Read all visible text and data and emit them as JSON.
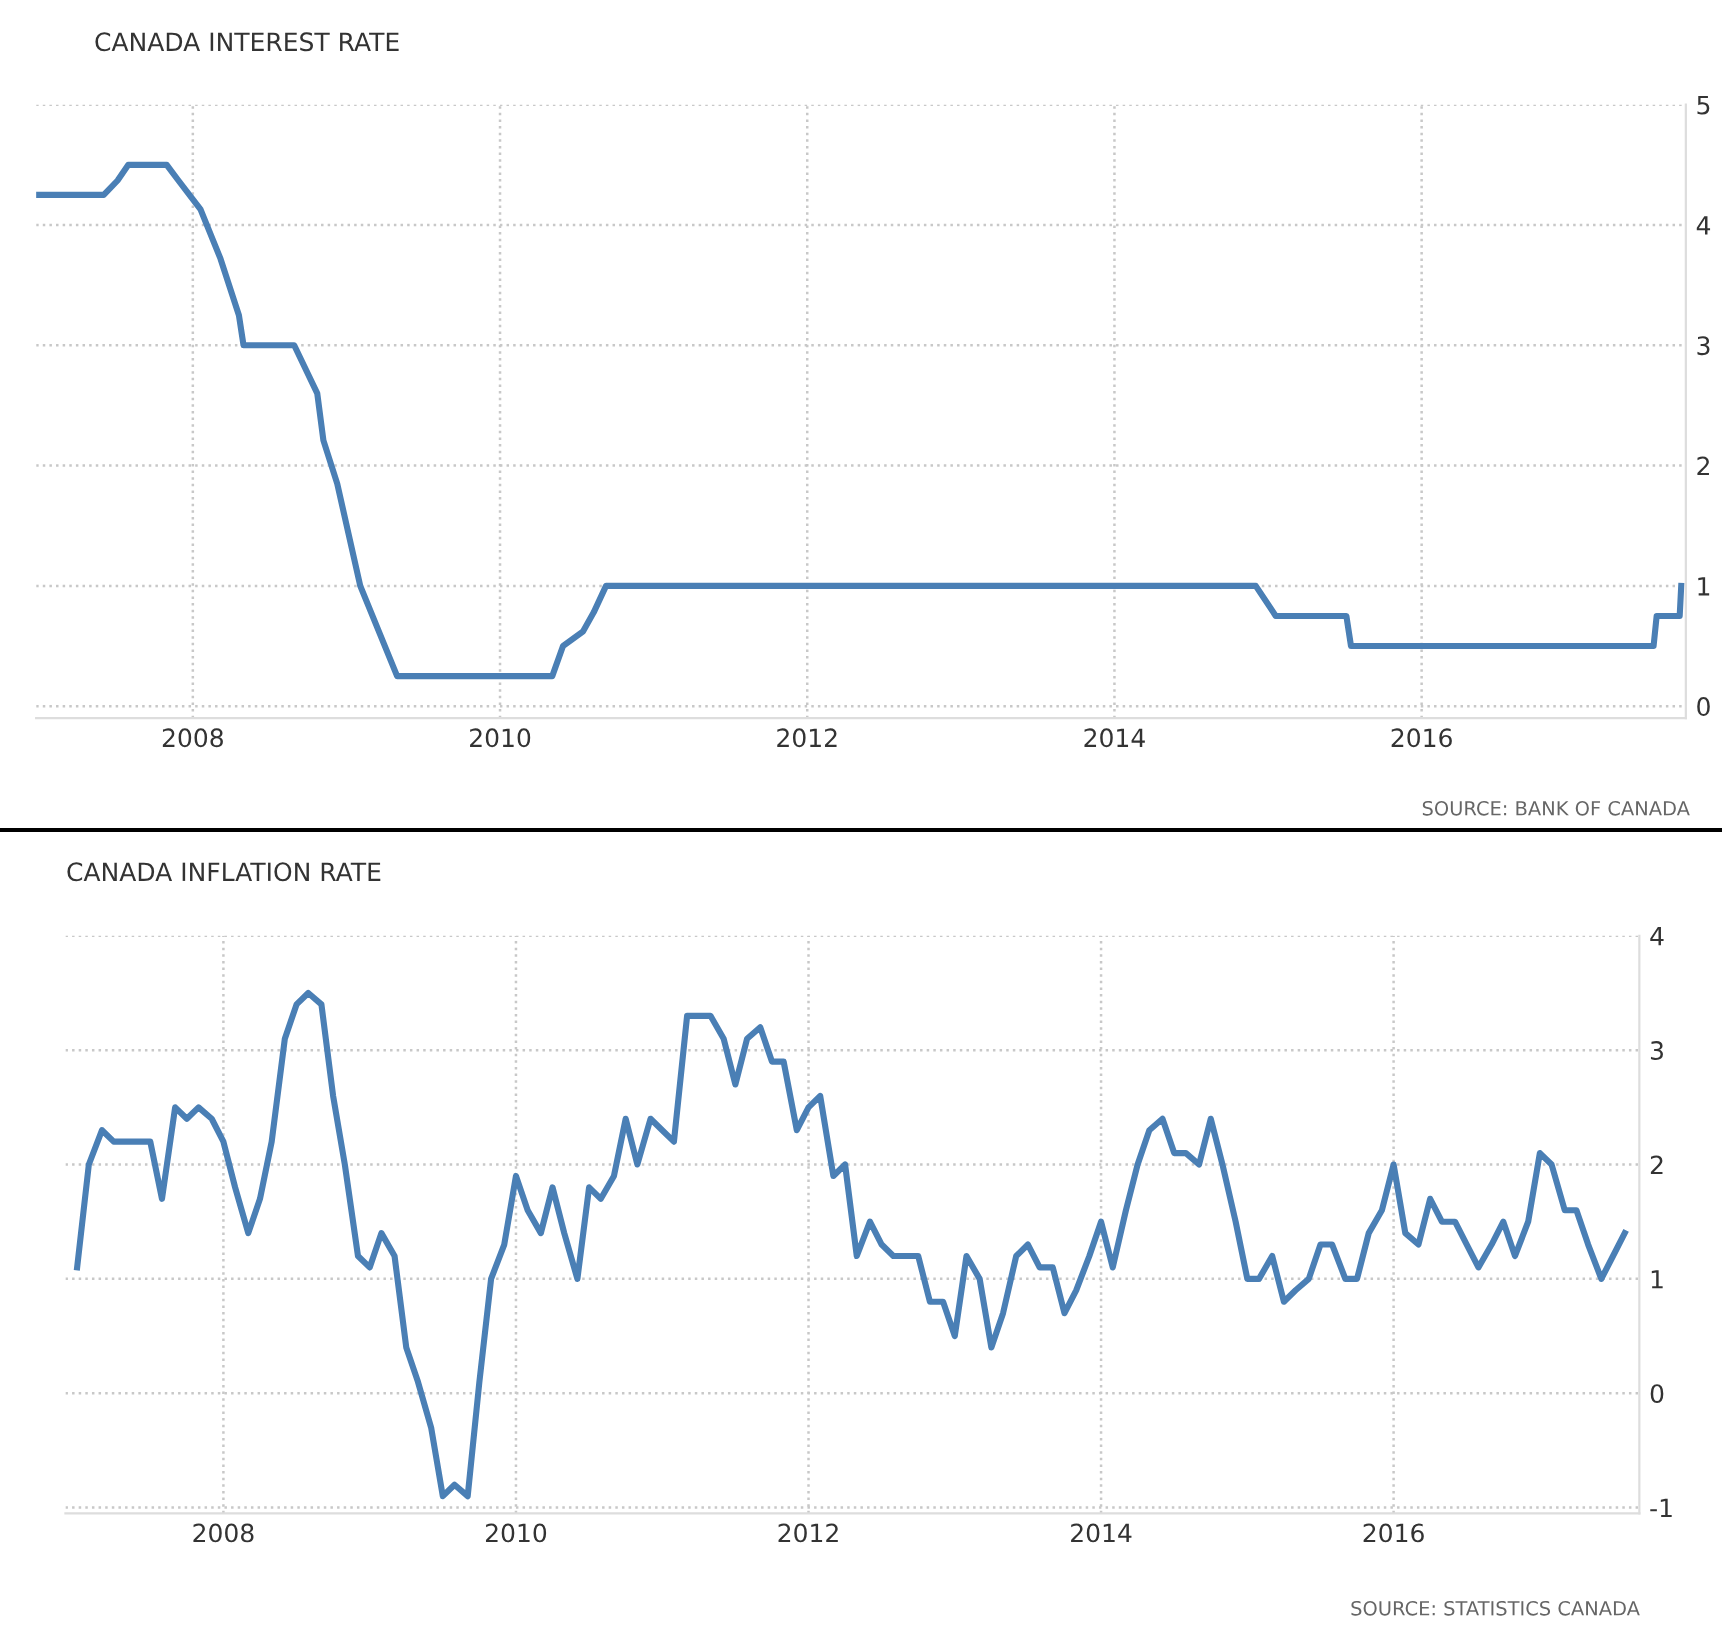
{
  "chart_data": [
    {
      "type": "line",
      "title": "CANADA INTEREST RATE",
      "annotations": [
        "SOURCE: BANK OF CANADA"
      ],
      "x": [
        2006.99,
        2007.42,
        2007.51,
        2007.58,
        2007.83,
        2007.9,
        2008.05,
        2008.18,
        2008.3,
        2008.33,
        2008.66,
        2008.81,
        2008.85,
        2008.94,
        2009.09,
        2009.33,
        2010.34,
        2010.41,
        2010.54,
        2010.61,
        2010.69,
        2014.92,
        2015.05,
        2015.51,
        2015.54,
        2017.51,
        2017.53,
        2017.68,
        2017.69
      ],
      "series": [
        {
          "color": "#4a7fb5",
          "values": [
            4.25,
            4.25,
            4.37,
            4.5,
            4.5,
            4.38,
            4.13,
            3.72,
            3.25,
            3,
            3,
            2.6,
            2.21,
            1.85,
            1,
            0.25,
            0.25,
            0.5,
            0.62,
            0.78,
            1,
            1,
            0.75,
            0.75,
            0.5,
            0.5,
            0.75,
            0.75,
            1
          ]
        }
      ],
      "xlim": [
        2006.98,
        2017.72
      ],
      "xticks": [
        2008,
        2010,
        2012,
        2014,
        2016
      ],
      "ylim": [
        -0.1,
        5
      ],
      "yticks": [
        0,
        1,
        2,
        3,
        4,
        5
      ],
      "grid": true,
      "line_style": "solid",
      "marker": "none"
    },
    {
      "type": "line",
      "title": "CANADA INFLATION RATE",
      "annotations": [
        "SOURCE: STATISTICS CANADA"
      ],
      "x": [
        2007.0,
        2007.08,
        2007.17,
        2007.25,
        2007.33,
        2007.42,
        2007.5,
        2007.58,
        2007.67,
        2007.75,
        2007.83,
        2007.92,
        2008.0,
        2008.08,
        2008.17,
        2008.25,
        2008.33,
        2008.42,
        2008.5,
        2008.58,
        2008.67,
        2008.75,
        2008.83,
        2008.92,
        2009.0,
        2009.08,
        2009.17,
        2009.25,
        2009.33,
        2009.42,
        2009.5,
        2009.58,
        2009.67,
        2009.75,
        2009.83,
        2009.92,
        2010.0,
        2010.08,
        2010.17,
        2010.25,
        2010.33,
        2010.42,
        2010.5,
        2010.58,
        2010.67,
        2010.75,
        2010.83,
        2010.92,
        2011.0,
        2011.08,
        2011.17,
        2011.25,
        2011.33,
        2011.42,
        2011.5,
        2011.58,
        2011.67,
        2011.75,
        2011.83,
        2011.92,
        2012.0,
        2012.08,
        2012.17,
        2012.25,
        2012.33,
        2012.42,
        2012.5,
        2012.58,
        2012.67,
        2012.75,
        2012.83,
        2012.92,
        2013.0,
        2013.08,
        2013.17,
        2013.25,
        2013.33,
        2013.42,
        2013.5,
        2013.58,
        2013.67,
        2013.75,
        2013.83,
        2013.92,
        2014.0,
        2014.08,
        2014.17,
        2014.25,
        2014.33,
        2014.42,
        2014.5,
        2014.58,
        2014.67,
        2014.75,
        2014.83,
        2014.92,
        2015.0,
        2015.08,
        2015.17,
        2015.25,
        2015.33,
        2015.42,
        2015.5,
        2015.58,
        2015.67,
        2015.75,
        2015.83,
        2015.92,
        2016.0,
        2016.08,
        2016.17,
        2016.25,
        2016.33,
        2016.42,
        2016.5,
        2016.58,
        2016.67,
        2016.75,
        2016.83,
        2016.92,
        2017.0,
        2017.08,
        2017.17,
        2017.25,
        2017.33,
        2017.42,
        2017.5,
        2017.58
      ],
      "series": [
        {
          "color": "#4a7fb5",
          "values": [
            1.1,
            2.0,
            2.3,
            2.2,
            2.2,
            2.2,
            2.2,
            1.7,
            2.5,
            2.4,
            2.5,
            2.4,
            2.2,
            1.8,
            1.4,
            1.7,
            2.2,
            3.1,
            3.4,
            3.5,
            3.4,
            2.6,
            2.0,
            1.2,
            1.1,
            1.4,
            1.2,
            0.4,
            0.1,
            -0.3,
            -0.9,
            -0.8,
            -0.9,
            0.1,
            1.0,
            1.3,
            1.9,
            1.6,
            1.4,
            1.8,
            1.4,
            1.0,
            1.8,
            1.7,
            1.9,
            2.4,
            2.0,
            2.4,
            2.3,
            2.2,
            3.3,
            3.3,
            3.3,
            3.1,
            2.7,
            3.1,
            3.2,
            2.9,
            2.9,
            2.3,
            2.5,
            2.6,
            1.9,
            2.0,
            1.2,
            1.5,
            1.3,
            1.2,
            1.2,
            1.2,
            0.8,
            0.8,
            0.5,
            1.2,
            1.0,
            0.4,
            0.7,
            1.2,
            1.3,
            1.1,
            1.1,
            0.7,
            0.9,
            1.2,
            1.5,
            1.1,
            1.6,
            2.0,
            2.3,
            2.4,
            2.1,
            2.1,
            2.0,
            2.4,
            2.0,
            1.5,
            1.0,
            1.0,
            1.2,
            0.8,
            0.9,
            1.0,
            1.3,
            1.3,
            1.0,
            1.0,
            1.4,
            1.6,
            2.0,
            1.4,
            1.3,
            1.7,
            1.5,
            1.5,
            1.3,
            1.1,
            1.3,
            1.5,
            1.2,
            1.5,
            2.1,
            2.0,
            1.6,
            1.6,
            1.3,
            1.0,
            1.2,
            1.4
          ]
        }
      ],
      "xlim": [
        2006.92,
        2017.68
      ],
      "xticks": [
        2008,
        2010,
        2012,
        2014,
        2016
      ],
      "ylim": [
        -1.05,
        4
      ],
      "yticks": [
        -1,
        0,
        1,
        2,
        3,
        4
      ],
      "grid": true,
      "line_style": "solid",
      "marker": "none"
    }
  ]
}
